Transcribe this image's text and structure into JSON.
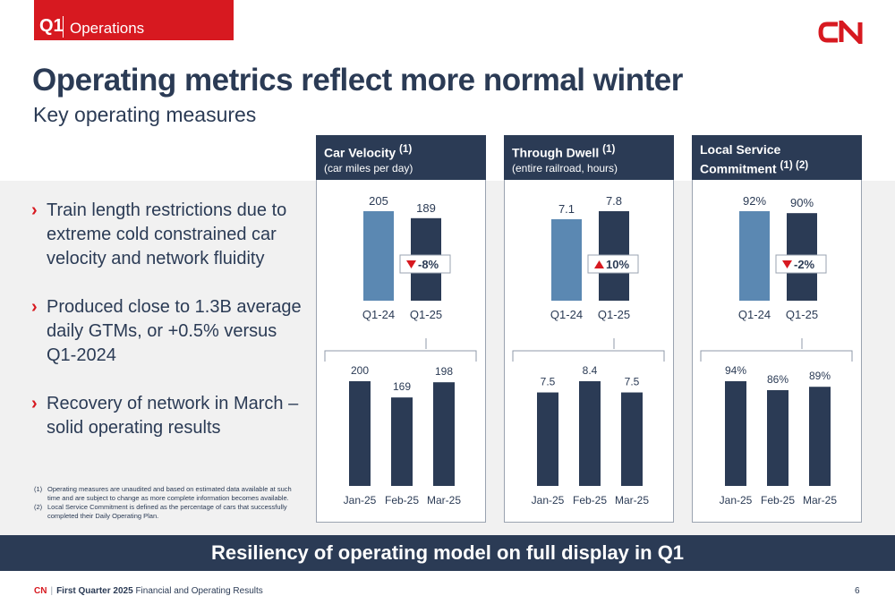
{
  "header": {
    "quarter": "Q1",
    "section": "Operations",
    "logo_text": "CN"
  },
  "title": "Operating metrics reflect more normal winter",
  "subtitle": "Key operating measures",
  "bullets": [
    "Train length restrictions due to extreme cold constrained car velocity and network fluidity",
    "Produced close to 1.3B average daily GTMs, or +0.5% versus Q1-2024",
    "Recovery of network in March – solid operating results"
  ],
  "footnotes": [
    {
      "num": "(1)",
      "text": "Operating measures are unaudited and based on estimated data available at such time and are subject to change as more complete information becomes available."
    },
    {
      "num": "(2)",
      "text": "Local Service Commitment is defined as the percentage of cars that successfully completed their Daily Operating Plan."
    }
  ],
  "panels": [
    {
      "title_lines": [
        "Car Velocity"
      ],
      "sup": "(1)",
      "subtitle": "(car miles per day)"
    },
    {
      "title_lines": [
        "Through Dwell"
      ],
      "sup": "(1)",
      "subtitle": "(entire railroad, hours)"
    },
    {
      "title_lines": [
        "Local Service",
        "Commitment"
      ],
      "sup": "(1) (2)",
      "subtitle": ""
    }
  ],
  "colors": {
    "navy": "#2b3b55",
    "steel_blue": "#5b88b2",
    "red": "#d71920",
    "band_gray": "#f1f1f1"
  },
  "bottom_banner": "Resiliency of operating model on full display in Q1",
  "footer": {
    "brand": "CN",
    "separator": "|",
    "quarter": "First Quarter 2025",
    "rest": " Financial and Operating Results",
    "page": "6"
  },
  "chart_data": [
    {
      "type": "bar",
      "panel": "Car Velocity",
      "categories": [
        "Q1-24",
        "Q1-25"
      ],
      "values": [
        205,
        189
      ],
      "labels": [
        "205",
        "189"
      ],
      "change": "-8%",
      "direction": "down"
    },
    {
      "type": "bar",
      "panel": "Car Velocity",
      "categories": [
        "Jan-25",
        "Feb-25",
        "Mar-25"
      ],
      "values": [
        200,
        169,
        198
      ],
      "labels": [
        "200",
        "169",
        "198"
      ]
    },
    {
      "type": "bar",
      "panel": "Through Dwell",
      "categories": [
        "Q1-24",
        "Q1-25"
      ],
      "values": [
        7.1,
        7.8
      ],
      "labels": [
        "7.1",
        "7.8"
      ],
      "change": "10%",
      "direction": "up"
    },
    {
      "type": "bar",
      "panel": "Through Dwell",
      "categories": [
        "Jan-25",
        "Feb-25",
        "Mar-25"
      ],
      "values": [
        7.5,
        8.4,
        7.5
      ],
      "labels": [
        "7.5",
        "8.4",
        "7.5"
      ]
    },
    {
      "type": "bar",
      "panel": "Local Service Commitment",
      "categories": [
        "Q1-24",
        "Q1-25"
      ],
      "values": [
        92,
        90
      ],
      "labels": [
        "92%",
        "90%"
      ],
      "change": "-2%",
      "direction": "down"
    },
    {
      "type": "bar",
      "panel": "Local Service Commitment",
      "categories": [
        "Jan-25",
        "Feb-25",
        "Mar-25"
      ],
      "values": [
        94,
        86,
        89
      ],
      "labels": [
        "94%",
        "86%",
        "89%"
      ]
    }
  ]
}
